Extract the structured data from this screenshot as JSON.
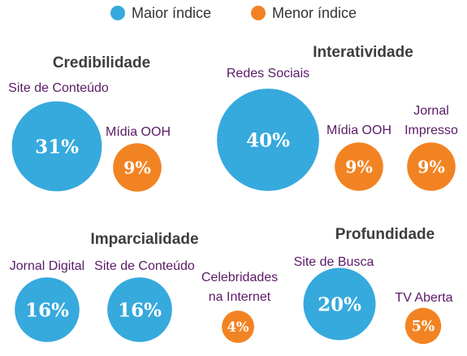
{
  "colors": {
    "maior": "#36a9dd",
    "menor": "#f28322",
    "title": "#3d3d3d",
    "category": "#5a1a66"
  },
  "legend": [
    {
      "label": "Maior índice",
      "color": "#36a9dd"
    },
    {
      "label": "Menor índice",
      "color": "#f28322"
    }
  ],
  "chart_data": {
    "type": "bubble",
    "unit": "%",
    "legend_position": "top-center",
    "series": [
      {
        "name": "Maior índice"
      },
      {
        "name": "Menor índice"
      }
    ],
    "groups": [
      {
        "title": "Credibilidade",
        "items": [
          {
            "label": "Site de Conteúdo",
            "value": 31,
            "display": "31%",
            "series": "Maior índice"
          },
          {
            "label": "Mídia OOH",
            "value": 9,
            "display": "9%",
            "series": "Menor índice"
          }
        ]
      },
      {
        "title": "Interatividade",
        "items": [
          {
            "label": "Redes Sociais",
            "value": 40,
            "display": "40%",
            "series": "Maior índice"
          },
          {
            "label": "Mídia OOH",
            "value": 9,
            "display": "9%",
            "series": "Menor índice"
          },
          {
            "label": "Jornal Impresso",
            "value": 9,
            "display": "9%",
            "series": "Menor índice"
          }
        ]
      },
      {
        "title": "Imparcialidade",
        "items": [
          {
            "label": "Jornal Digital",
            "value": 16,
            "display": "16%",
            "series": "Maior índice"
          },
          {
            "label": "Site de Conteúdo",
            "value": 16,
            "display": "16%",
            "series": "Maior índice"
          },
          {
            "label": "Celebridades na Internet",
            "value": 4,
            "display": "4%",
            "series": "Menor índice"
          }
        ]
      },
      {
        "title": "Profundidade",
        "items": [
          {
            "label": "Site de Busca",
            "value": 20,
            "display": "20%",
            "series": "Maior índice"
          },
          {
            "label": "TV Aberta",
            "value": 5,
            "display": "5%",
            "series": "Menor índice"
          }
        ]
      }
    ]
  }
}
